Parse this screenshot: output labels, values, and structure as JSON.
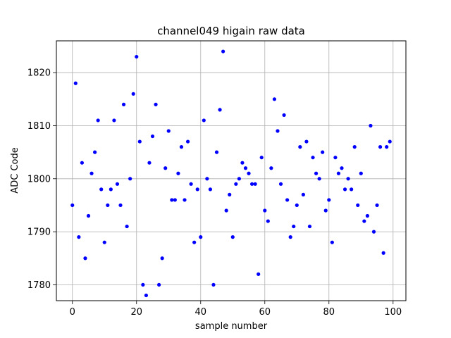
{
  "chart_data": {
    "type": "scatter",
    "title": "channel049 higain raw data",
    "xlabel": "sample number",
    "ylabel": "ADC Code",
    "xlim": [
      -5,
      104
    ],
    "ylim": [
      1777,
      1826
    ],
    "xticks": [
      0,
      20,
      40,
      60,
      80,
      100
    ],
    "yticks": [
      1780,
      1790,
      1800,
      1810,
      1820
    ],
    "grid": true,
    "marker_color": "#0000ff",
    "x": [
      0,
      1,
      2,
      3,
      4,
      5,
      6,
      7,
      8,
      9,
      10,
      11,
      12,
      13,
      14,
      15,
      16,
      17,
      18,
      19,
      20,
      21,
      22,
      23,
      24,
      25,
      26,
      27,
      28,
      29,
      30,
      31,
      32,
      33,
      34,
      35,
      36,
      37,
      38,
      39,
      40,
      41,
      42,
      43,
      44,
      45,
      46,
      47,
      48,
      49,
      50,
      51,
      52,
      53,
      54,
      55,
      56,
      57,
      58,
      59,
      60,
      61,
      62,
      63,
      64,
      65,
      66,
      67,
      68,
      69,
      70,
      71,
      72,
      73,
      74,
      75,
      76,
      77,
      78,
      79,
      80,
      81,
      82,
      83,
      84,
      85,
      86,
      87,
      88,
      89,
      90,
      91,
      92,
      93,
      94,
      95,
      96,
      97,
      98,
      99
    ],
    "y": [
      1795,
      1818,
      1789,
      1803,
      1785,
      1793,
      1801,
      1805,
      1811,
      1798,
      1788,
      1795,
      1798,
      1811,
      1799,
      1795,
      1814,
      1791,
      1800,
      1816,
      1823,
      1807,
      1780,
      1778,
      1803,
      1808,
      1814,
      1780,
      1785,
      1802,
      1809,
      1796,
      1796,
      1801,
      1806,
      1796,
      1807,
      1799,
      1788,
      1798,
      1789,
      1811,
      1800,
      1798,
      1780,
      1805,
      1813,
      1824,
      1794,
      1797,
      1789,
      1799,
      1800,
      1803,
      1802,
      1801,
      1799,
      1799,
      1782,
      1804,
      1794,
      1792,
      1802,
      1815,
      1809,
      1799,
      1812,
      1796,
      1789,
      1791,
      1795,
      1806,
      1797,
      1807,
      1791,
      1804,
      1801,
      1800,
      1805,
      1794,
      1796,
      1788,
      1804,
      1801,
      1802,
      1798,
      1800,
      1798,
      1806,
      1795,
      1801,
      1792,
      1793,
      1810,
      1790,
      1795,
      1806,
      1786,
      1806,
      1807
    ]
  }
}
